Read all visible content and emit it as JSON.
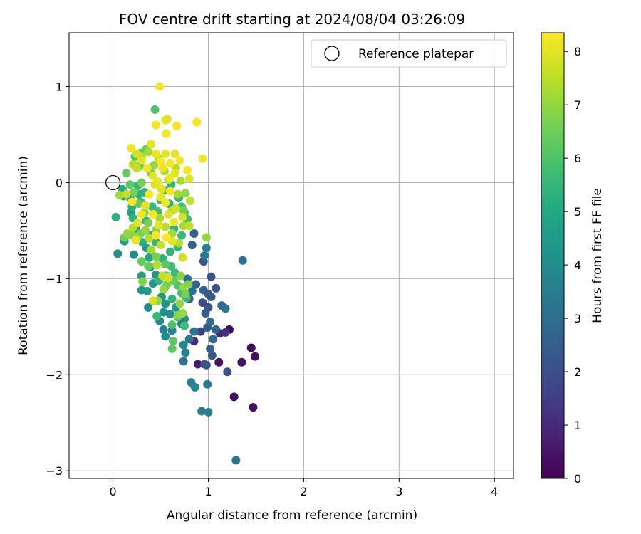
{
  "chart_data": {
    "type": "scatter",
    "title": "FOV centre drift starting at 2024/08/04 03:26:09",
    "xlabel": "Angular distance from reference (arcmin)",
    "ylabel": "Rotation from reference (arcmin)",
    "xlim": [
      -0.46,
      4.2
    ],
    "ylim": [
      -3.08,
      1.56
    ],
    "xticks": [
      0,
      1,
      2,
      3,
      4
    ],
    "yticks": [
      -3,
      -2,
      -1,
      0,
      1
    ],
    "grid": true,
    "legend": {
      "placement": "top-right",
      "entries": [
        "Reference platepar"
      ]
    },
    "reference_point": {
      "x": 0,
      "y": 0,
      "label": "Reference platepar"
    },
    "colorbar": {
      "label": "Hours from first FF file",
      "min": 0,
      "max": 8.35,
      "ticks": [
        0,
        1,
        2,
        3,
        4,
        5,
        6,
        7,
        8
      ],
      "colormap": "viridis"
    },
    "points": [
      [
        1.22,
        -1.53,
        0.2
      ],
      [
        1.45,
        -1.72,
        0.2
      ],
      [
        1.49,
        -1.81,
        0.3
      ],
      [
        1.35,
        -1.87,
        0.4
      ],
      [
        1.11,
        -1.87,
        0.4
      ],
      [
        1.27,
        -2.23,
        0.3
      ],
      [
        1.47,
        -2.34,
        0.3
      ],
      [
        0.89,
        -1.89,
        0.6
      ],
      [
        0.85,
        -1.65,
        1.0
      ],
      [
        1.12,
        -1.57,
        0.8
      ],
      [
        1.18,
        -1.56,
        1.2
      ],
      [
        0.92,
        -1.55,
        1.6
      ],
      [
        0.98,
        -1.9,
        2.0
      ],
      [
        0.96,
        -1.89,
        2.2
      ],
      [
        1.2,
        -1.97,
        2.0
      ],
      [
        1.04,
        -1.8,
        2.3
      ],
      [
        1.02,
        -1.73,
        2.6
      ],
      [
        1.05,
        -1.63,
        2.8
      ],
      [
        0.99,
        -1.51,
        2.4
      ],
      [
        1.08,
        -1.53,
        2.6
      ],
      [
        1.02,
        -1.45,
        3.0
      ],
      [
        0.97,
        -1.36,
        2.4
      ],
      [
        1.0,
        -1.3,
        2.2
      ],
      [
        1.03,
        -1.19,
        2.4
      ],
      [
        1.08,
        -1.1,
        2.2
      ],
      [
        1.03,
        -0.98,
        2.2
      ],
      [
        0.95,
        -1.12,
        2.6
      ],
      [
        1.0,
        -1.16,
        2.4
      ],
      [
        0.94,
        -1.25,
        2.0
      ],
      [
        1.14,
        -1.28,
        3.0
      ],
      [
        1.18,
        -1.31,
        3.2
      ],
      [
        0.95,
        -0.82,
        2.2
      ],
      [
        1.36,
        -0.81,
        3.0
      ],
      [
        0.85,
        -0.53,
        2.6
      ],
      [
        0.83,
        -0.65,
        2.6
      ],
      [
        0.98,
        -0.68,
        3.6
      ],
      [
        0.96,
        -0.76,
        3.4
      ],
      [
        0.78,
        -1.0,
        3.0
      ],
      [
        0.87,
        -1.06,
        2.6
      ],
      [
        0.83,
        -1.13,
        3.0
      ],
      [
        0.8,
        -1.21,
        2.8
      ],
      [
        0.85,
        -1.55,
        3.2
      ],
      [
        0.8,
        -1.63,
        3.4
      ],
      [
        0.74,
        -1.69,
        3.8
      ],
      [
        0.76,
        -1.77,
        3.6
      ],
      [
        0.74,
        -1.86,
        3.2
      ],
      [
        0.82,
        -2.08,
        3.6
      ],
      [
        0.86,
        -2.13,
        3.8
      ],
      [
        0.99,
        -2.1,
        3.4
      ],
      [
        0.93,
        -2.38,
        3.6
      ],
      [
        1.0,
        -2.39,
        3.6
      ],
      [
        1.29,
        -2.89,
        3.2
      ],
      [
        0.53,
        -1.53,
        3.6
      ],
      [
        0.62,
        -1.54,
        3.7
      ],
      [
        0.72,
        -1.47,
        3.6
      ],
      [
        0.75,
        -1.42,
        3.9
      ],
      [
        0.55,
        -1.6,
        3.9
      ],
      [
        0.49,
        -1.44,
        3.9
      ],
      [
        0.53,
        -1.35,
        4.2
      ],
      [
        0.6,
        -1.37,
        4.0
      ],
      [
        0.66,
        -1.3,
        4.2
      ],
      [
        0.71,
        -1.41,
        3.5
      ],
      [
        0.51,
        -1.19,
        4.3
      ],
      [
        0.55,
        -1.26,
        4.4
      ],
      [
        0.37,
        -1.3,
        4.0
      ],
      [
        0.36,
        -1.13,
        4.6
      ],
      [
        0.3,
        -1.12,
        4.4
      ],
      [
        0.42,
        -1.05,
        4.2
      ],
      [
        0.45,
        -0.96,
        4.3
      ],
      [
        0.39,
        -0.88,
        4.4
      ],
      [
        0.3,
        -0.97,
        4.6
      ],
      [
        0.38,
        -0.78,
        4.8
      ],
      [
        0.35,
        -0.68,
        4.5
      ],
      [
        0.22,
        -0.75,
        4.0
      ],
      [
        0.05,
        -0.74,
        4.2
      ],
      [
        0.12,
        -0.61,
        4.6
      ],
      [
        0.11,
        -0.14,
        4.4
      ],
      [
        0.03,
        -0.36,
        5.3
      ],
      [
        0.1,
        -0.07,
        5.0
      ],
      [
        0.18,
        -0.16,
        4.8
      ],
      [
        0.19,
        -0.31,
        4.8
      ],
      [
        0.2,
        -0.25,
        5.2
      ],
      [
        0.24,
        -0.48,
        4.6
      ],
      [
        0.21,
        -0.37,
        5.4
      ],
      [
        0.27,
        -0.12,
        5.2
      ],
      [
        0.26,
        -0.03,
        5.4
      ],
      [
        0.33,
        -0.1,
        5.3
      ],
      [
        0.29,
        -0.2,
        5.6
      ],
      [
        0.35,
        -0.4,
        5.3
      ],
      [
        0.31,
        -0.62,
        5.2
      ],
      [
        0.4,
        -0.55,
        5.0
      ],
      [
        0.45,
        -0.62,
        5.4
      ],
      [
        0.41,
        -0.25,
        5.6
      ],
      [
        0.47,
        -0.3,
        5.8
      ],
      [
        0.5,
        -0.18,
        5.6
      ],
      [
        0.55,
        -0.08,
        5.6
      ],
      [
        0.61,
        -0.02,
        5.4
      ],
      [
        0.59,
        -0.22,
        5.2
      ],
      [
        0.69,
        -0.16,
        5.4
      ],
      [
        0.72,
        -0.25,
        5.8
      ],
      [
        0.75,
        -0.31,
        5.8
      ],
      [
        0.78,
        -0.38,
        5.8
      ],
      [
        0.64,
        -0.48,
        5.4
      ],
      [
        0.72,
        -0.55,
        5.6
      ],
      [
        0.68,
        -0.67,
        5.5
      ],
      [
        0.6,
        -0.72,
        5.4
      ],
      [
        0.52,
        -0.79,
        5.4
      ],
      [
        0.61,
        -0.87,
        5.6
      ],
      [
        0.65,
        -0.94,
        5.6
      ],
      [
        0.56,
        -0.97,
        5.8
      ],
      [
        0.48,
        -1.02,
        5.4
      ],
      [
        0.54,
        -1.1,
        5.6
      ],
      [
        0.68,
        -1.07,
        6.0
      ],
      [
        0.72,
        -1.15,
        5.8
      ],
      [
        0.77,
        -1.2,
        5.6
      ],
      [
        0.62,
        -1.21,
        5.4
      ],
      [
        0.46,
        -1.39,
        5.6
      ],
      [
        0.68,
        -1.4,
        6.0
      ],
      [
        0.62,
        -1.48,
        6.0
      ],
      [
        0.63,
        -1.65,
        6.2
      ],
      [
        0.62,
        -1.73,
        6.2
      ],
      [
        0.75,
        -1.49,
        5.8
      ],
      [
        0.44,
        0.76,
        6.0
      ],
      [
        0.23,
        0.27,
        6.0
      ],
      [
        0.29,
        0.31,
        6.2
      ],
      [
        0.35,
        0.35,
        6.4
      ],
      [
        0.14,
        0.1,
        6.4
      ],
      [
        0.18,
        -0.02,
        6.2
      ],
      [
        0.3,
        0.0,
        6.6
      ],
      [
        0.28,
        0.17,
        6.4
      ],
      [
        0.4,
        0.1,
        6.6
      ],
      [
        0.22,
        -0.1,
        6.6
      ],
      [
        0.27,
        -0.22,
        6.4
      ],
      [
        0.33,
        -0.31,
        6.8
      ],
      [
        0.37,
        -0.42,
        6.6
      ],
      [
        0.29,
        -0.53,
        6.6
      ],
      [
        0.2,
        -0.55,
        6.8
      ],
      [
        0.12,
        -0.57,
        6.4
      ],
      [
        0.3,
        -0.82,
        6.4
      ],
      [
        0.37,
        -0.87,
        6.4
      ],
      [
        0.45,
        -0.77,
        6.6
      ],
      [
        0.55,
        -0.85,
        6.2
      ],
      [
        0.57,
        -1.05,
        6.6
      ],
      [
        0.64,
        -1.02,
        6.4
      ],
      [
        0.71,
        -0.97,
        6.8
      ],
      [
        0.74,
        -1.09,
        7.0
      ],
      [
        0.76,
        -1.16,
        6.6
      ],
      [
        0.79,
        -1.06,
        6.8
      ],
      [
        0.7,
        -1.26,
        7.0
      ],
      [
        0.68,
        -1.38,
        6.8
      ],
      [
        0.73,
        -1.36,
        7.0
      ],
      [
        0.31,
        -1.03,
        6.8
      ],
      [
        0.53,
        -1.11,
        7.0
      ],
      [
        0.47,
        -1.23,
        7.0
      ],
      [
        0.74,
        -0.29,
        6.6
      ],
      [
        0.76,
        -0.11,
        7.0
      ],
      [
        0.74,
        -0.45,
        7.2
      ],
      [
        0.69,
        -0.63,
        7.4
      ],
      [
        0.62,
        -0.53,
        7.2
      ],
      [
        0.55,
        -0.46,
        7.4
      ],
      [
        0.49,
        -0.37,
        7.2
      ],
      [
        0.45,
        -0.5,
        7.0
      ],
      [
        0.4,
        -0.7,
        7.2
      ],
      [
        0.38,
        -0.58,
        7.4
      ],
      [
        0.34,
        -0.5,
        7.0
      ],
      [
        0.25,
        -0.58,
        7.2
      ],
      [
        0.21,
        -0.47,
        7.4
      ],
      [
        0.15,
        -0.53,
        7.0
      ],
      [
        0.07,
        -0.13,
        7.2
      ],
      [
        0.14,
        -0.12,
        7.6
      ],
      [
        0.21,
        0.19,
        7.4
      ],
      [
        0.25,
        0.15,
        7.6
      ],
      [
        0.3,
        0.27,
        7.4
      ],
      [
        0.37,
        0.32,
        7.2
      ],
      [
        0.43,
        0.18,
        7.0
      ],
      [
        0.48,
        0.25,
        7.4
      ],
      [
        0.54,
        0.12,
        7.2
      ],
      [
        0.58,
        0.03,
        7.6
      ],
      [
        0.66,
        0.15,
        7.4
      ],
      [
        0.71,
        0.02,
        7.2
      ],
      [
        0.68,
        -0.12,
        7.2
      ],
      [
        0.62,
        -0.29,
        7.4
      ],
      [
        0.5,
        -0.65,
        7.6
      ],
      [
        0.46,
        -0.86,
        7.4
      ],
      [
        0.52,
        -0.97,
        7.6
      ],
      [
        0.8,
        -0.45,
        7.6
      ],
      [
        0.73,
        -0.36,
        7.8
      ],
      [
        0.66,
        -0.27,
        7.8
      ],
      [
        0.98,
        -0.57,
        7.0
      ],
      [
        0.81,
        -0.19,
        7.6
      ],
      [
        0.73,
        -0.78,
        7.8
      ],
      [
        0.58,
        -0.99,
        7.8
      ],
      [
        0.42,
        -1.23,
        7.8
      ],
      [
        0.62,
        -0.61,
        8.0
      ],
      [
        0.55,
        -0.21,
        8.2
      ],
      [
        0.51,
        -0.07,
        8.0
      ],
      [
        0.47,
        0.01,
        8.2
      ],
      [
        0.42,
        0.07,
        8.0
      ],
      [
        0.36,
        0.15,
        8.2
      ],
      [
        0.3,
        0.23,
        8.0
      ],
      [
        0.19,
        0.36,
        8.2
      ],
      [
        0.25,
        0.3,
        7.8
      ],
      [
        0.55,
        0.3,
        8.0
      ],
      [
        0.6,
        0.2,
        8.2
      ],
      [
        0.65,
        0.3,
        8.0
      ],
      [
        0.7,
        0.23,
        8.2
      ],
      [
        0.65,
        0.1,
        8.0
      ],
      [
        0.6,
        0.05,
        8.2
      ],
      [
        0.78,
        0.13,
        8.2
      ],
      [
        0.8,
        0.04,
        8.0
      ],
      [
        0.45,
        0.6,
        8.2
      ],
      [
        0.55,
        0.65,
        8.2
      ],
      [
        0.57,
        0.66,
        8.0
      ],
      [
        0.56,
        0.51,
        8.2
      ],
      [
        0.67,
        0.59,
        8.2
      ],
      [
        0.88,
        0.63,
        8.2
      ],
      [
        0.49,
        1.0,
        8.2
      ],
      [
        0.94,
        0.25,
        8.2
      ],
      [
        0.4,
        0.4,
        8.0
      ],
      [
        0.45,
        0.3,
        8.1
      ],
      [
        0.5,
        0.22,
        8.3
      ],
      [
        0.52,
        0.15,
        8.1
      ],
      [
        0.44,
        -0.02,
        8.0
      ],
      [
        0.38,
        -0.12,
        8.2
      ],
      [
        0.34,
        -0.24,
        8.0
      ],
      [
        0.42,
        -0.33,
        8.2
      ],
      [
        0.48,
        -0.44,
        8.0
      ],
      [
        0.56,
        -0.57,
        8.2
      ],
      [
        0.64,
        -0.41,
        8.1
      ],
      [
        0.6,
        -0.09,
        8.3
      ],
      [
        0.5,
        -0.15,
        8.1
      ],
      [
        0.26,
        -0.42,
        8.0
      ],
      [
        0.3,
        -0.33,
        8.2
      ],
      [
        0.45,
        -0.55,
        8.3
      ],
      [
        0.58,
        -0.33,
        8.0
      ],
      [
        0.24,
        -0.6,
        8.1
      ],
      [
        0.2,
        -0.2,
        8.3
      ]
    ]
  }
}
